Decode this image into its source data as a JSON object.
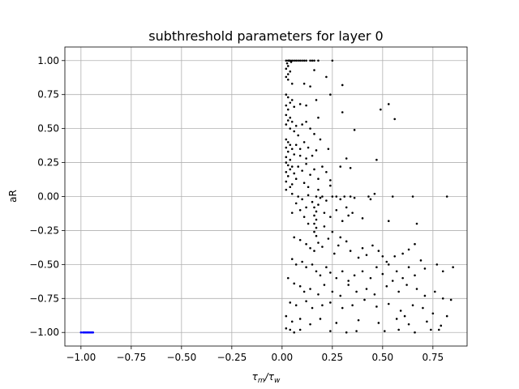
{
  "chart_data": {
    "type": "scatter",
    "title": "subthreshold parameters for layer 0",
    "xlabel_main": "τ",
    "xlabel_sub1": "m",
    "xlabel_sep": "/τ",
    "xlabel_sub2": "w",
    "ylabel": "aR",
    "xlim": [
      -1.08,
      0.92
    ],
    "ylim": [
      -1.1,
      1.1
    ],
    "grid": true,
    "x_ticks": [
      {
        "value": -1.0,
        "label": "−1.00"
      },
      {
        "value": -0.75,
        "label": "−0.75"
      },
      {
        "value": -0.5,
        "label": "−0.50"
      },
      {
        "value": -0.25,
        "label": "−0.25"
      },
      {
        "value": 0.0,
        "label": "0.00"
      },
      {
        "value": 0.25,
        "label": "0.25"
      },
      {
        "value": 0.5,
        "label": "0.50"
      },
      {
        "value": 0.75,
        "label": "0.75"
      }
    ],
    "y_ticks": [
      {
        "value": -1.0,
        "label": "−1.00"
      },
      {
        "value": -0.75,
        "label": "−0.75"
      },
      {
        "value": -0.5,
        "label": "−0.50"
      },
      {
        "value": -0.25,
        "label": "−0.25"
      },
      {
        "value": 0.0,
        "label": "0.00"
      },
      {
        "value": 0.25,
        "label": "0.25"
      },
      {
        "value": 0.5,
        "label": "0.50"
      },
      {
        "value": 0.75,
        "label": "0.75"
      },
      {
        "value": 1.0,
        "label": "1.00"
      }
    ],
    "series": [
      {
        "color": "#0000ff",
        "points": [
          [
            -1.0,
            -1.0
          ],
          [
            -0.99,
            -1.0
          ],
          [
            -0.985,
            -1.0
          ],
          [
            -0.98,
            -1.0
          ],
          [
            -0.975,
            -1.0
          ],
          [
            -0.97,
            -1.0
          ],
          [
            -0.965,
            -1.0
          ],
          [
            -0.96,
            -1.0
          ],
          [
            -0.955,
            -1.0
          ],
          [
            -0.95,
            -1.0
          ],
          [
            -0.945,
            -1.0
          ],
          [
            -0.94,
            -1.0
          ]
        ]
      },
      {
        "color": "#000000",
        "points": [
          [
            0.02,
            1.0
          ],
          [
            0.03,
            1.0
          ],
          [
            0.04,
            1.0
          ],
          [
            0.05,
            1.0
          ],
          [
            0.06,
            1.0
          ],
          [
            0.07,
            1.0
          ],
          [
            0.08,
            1.0
          ],
          [
            0.09,
            1.0
          ],
          [
            0.1,
            1.0
          ],
          [
            0.11,
            1.0
          ],
          [
            0.12,
            1.0
          ],
          [
            0.14,
            1.0
          ],
          [
            0.16,
            1.0
          ],
          [
            0.18,
            1.0
          ],
          [
            0.25,
            1.0
          ],
          [
            0.15,
            1.0
          ],
          [
            0.035,
            1.0
          ],
          [
            0.045,
            0.99
          ],
          [
            0.025,
            0.98
          ],
          [
            0.03,
            0.96
          ],
          [
            0.02,
            0.94
          ],
          [
            0.04,
            0.92
          ],
          [
            0.03,
            0.9
          ],
          [
            0.02,
            0.88
          ],
          [
            0.03,
            0.86
          ],
          [
            0.16,
            0.93
          ],
          [
            0.22,
            0.88
          ],
          [
            0.3,
            0.82
          ],
          [
            0.05,
            0.83
          ],
          [
            0.11,
            0.83
          ],
          [
            0.14,
            0.81
          ],
          [
            0.02,
            0.75
          ],
          [
            0.03,
            0.73
          ],
          [
            0.05,
            0.71
          ],
          [
            0.04,
            0.69
          ],
          [
            0.02,
            0.67
          ],
          [
            0.06,
            0.66
          ],
          [
            0.03,
            0.64
          ],
          [
            0.09,
            0.68
          ],
          [
            0.12,
            0.67
          ],
          [
            0.17,
            0.71
          ],
          [
            0.24,
            0.75
          ],
          [
            0.18,
            0.58
          ],
          [
            0.3,
            0.62
          ],
          [
            0.49,
            0.64
          ],
          [
            0.53,
            0.68
          ],
          [
            0.56,
            0.57
          ],
          [
            0.02,
            0.6
          ],
          [
            0.04,
            0.58
          ],
          [
            0.03,
            0.56
          ],
          [
            0.05,
            0.55
          ],
          [
            0.07,
            0.52
          ],
          [
            0.02,
            0.53
          ],
          [
            0.04,
            0.5
          ],
          [
            0.06,
            0.48
          ],
          [
            0.1,
            0.53
          ],
          [
            0.12,
            0.55
          ],
          [
            0.14,
            0.5
          ],
          [
            0.16,
            0.46
          ],
          [
            0.08,
            0.45
          ],
          [
            0.19,
            0.42
          ],
          [
            0.36,
            0.49
          ],
          [
            0.02,
            0.42
          ],
          [
            0.03,
            0.4
          ],
          [
            0.04,
            0.38
          ],
          [
            0.02,
            0.36
          ],
          [
            0.05,
            0.35
          ],
          [
            0.03,
            0.33
          ],
          [
            0.06,
            0.31
          ],
          [
            0.02,
            0.29
          ],
          [
            0.04,
            0.27
          ],
          [
            0.07,
            0.38
          ],
          [
            0.09,
            0.35
          ],
          [
            0.11,
            0.4
          ],
          [
            0.13,
            0.36
          ],
          [
            0.15,
            0.3
          ],
          [
            0.17,
            0.34
          ],
          [
            0.23,
            0.35
          ],
          [
            0.09,
            0.3
          ],
          [
            0.12,
            0.28
          ],
          [
            0.02,
            0.25
          ],
          [
            0.03,
            0.23
          ],
          [
            0.05,
            0.22
          ],
          [
            0.04,
            0.2
          ],
          [
            0.02,
            0.18
          ],
          [
            0.06,
            0.17
          ],
          [
            0.03,
            0.15
          ],
          [
            0.07,
            0.13
          ],
          [
            0.02,
            0.11
          ],
          [
            0.05,
            0.09
          ],
          [
            0.04,
            0.07
          ],
          [
            0.02,
            0.05
          ],
          [
            0.08,
            0.22
          ],
          [
            0.1,
            0.19
          ],
          [
            0.12,
            0.24
          ],
          [
            0.14,
            0.16
          ],
          [
            0.16,
            0.2
          ],
          [
            0.18,
            0.13
          ],
          [
            0.2,
            0.22
          ],
          [
            0.22,
            0.18
          ],
          [
            0.24,
            0.12
          ],
          [
            0.32,
            0.28
          ],
          [
            0.34,
            0.21
          ],
          [
            0.29,
            0.22
          ],
          [
            0.47,
            0.27
          ],
          [
            0.11,
            0.1
          ],
          [
            0.13,
            0.07
          ],
          [
            0.18,
            0.05
          ],
          [
            0.24,
            0.08
          ],
          [
            0.05,
            0.02
          ],
          [
            0.08,
            0.0
          ],
          [
            0.1,
            -0.02
          ],
          [
            0.13,
            0.01
          ],
          [
            0.15,
            -0.04
          ],
          [
            0.17,
            0.0
          ],
          [
            0.19,
            -0.01
          ],
          [
            0.2,
            0.0
          ],
          [
            0.22,
            -0.03
          ],
          [
            0.25,
            0.0
          ],
          [
            0.27,
            0.0
          ],
          [
            0.29,
            -0.02
          ],
          [
            0.31,
            0.0
          ],
          [
            0.34,
            0.0
          ],
          [
            0.36,
            -0.01
          ],
          [
            0.18,
            -0.06
          ],
          [
            0.12,
            -0.08
          ],
          [
            0.07,
            -0.05
          ],
          [
            0.43,
            0.0
          ],
          [
            0.46,
            0.02
          ],
          [
            0.44,
            -0.02
          ],
          [
            0.55,
            0.0
          ],
          [
            0.65,
            0.0
          ],
          [
            0.82,
            0.0
          ],
          [
            0.32,
            -0.08
          ],
          [
            0.16,
            -0.08
          ],
          [
            0.17,
            -0.11
          ],
          [
            0.16,
            -0.14
          ],
          [
            0.17,
            -0.17
          ],
          [
            0.16,
            -0.2
          ],
          [
            0.17,
            -0.23
          ],
          [
            0.16,
            -0.26
          ],
          [
            0.17,
            -0.29
          ],
          [
            0.05,
            -0.12
          ],
          [
            0.09,
            -0.1
          ],
          [
            0.11,
            -0.15
          ],
          [
            0.13,
            -0.2
          ],
          [
            0.21,
            -0.12
          ],
          [
            0.24,
            -0.15
          ],
          [
            0.27,
            -0.1
          ],
          [
            0.3,
            -0.18
          ],
          [
            0.33,
            -0.14
          ],
          [
            0.21,
            -0.22
          ],
          [
            0.25,
            -0.26
          ],
          [
            0.29,
            -0.3
          ],
          [
            0.35,
            -0.12
          ],
          [
            0.4,
            -0.16
          ],
          [
            0.53,
            -0.18
          ],
          [
            0.67,
            -0.2
          ],
          [
            0.06,
            -0.3
          ],
          [
            0.09,
            -0.32
          ],
          [
            0.12,
            -0.35
          ],
          [
            0.14,
            -0.38
          ],
          [
            0.16,
            -0.4
          ],
          [
            0.18,
            -0.34
          ],
          [
            0.2,
            -0.37
          ],
          [
            0.23,
            -0.31
          ],
          [
            0.26,
            -0.42
          ],
          [
            0.28,
            -0.36
          ],
          [
            0.32,
            -0.33
          ],
          [
            0.34,
            -0.4
          ],
          [
            0.38,
            -0.45
          ],
          [
            0.4,
            -0.38
          ],
          [
            0.42,
            -0.43
          ],
          [
            0.45,
            -0.36
          ],
          [
            0.48,
            -0.4
          ],
          [
            0.5,
            -0.44
          ],
          [
            0.52,
            -0.48
          ],
          [
            0.56,
            -0.44
          ],
          [
            0.6,
            -0.42
          ],
          [
            0.63,
            -0.39
          ],
          [
            0.66,
            -0.35
          ],
          [
            0.69,
            -0.47
          ],
          [
            0.05,
            -0.46
          ],
          [
            0.07,
            -0.5
          ],
          [
            0.1,
            -0.48
          ],
          [
            0.12,
            -0.52
          ],
          [
            0.15,
            -0.5
          ],
          [
            0.17,
            -0.55
          ],
          [
            0.19,
            -0.58
          ],
          [
            0.22,
            -0.52
          ],
          [
            0.24,
            -0.56
          ],
          [
            0.27,
            -0.6
          ],
          [
            0.3,
            -0.55
          ],
          [
            0.33,
            -0.62
          ],
          [
            0.36,
            -0.58
          ],
          [
            0.4,
            -0.55
          ],
          [
            0.44,
            -0.6
          ],
          [
            0.47,
            -0.52
          ],
          [
            0.5,
            -0.57
          ],
          [
            0.53,
            -0.5
          ],
          [
            0.57,
            -0.55
          ],
          [
            0.6,
            -0.6
          ],
          [
            0.63,
            -0.52
          ],
          [
            0.66,
            -0.58
          ],
          [
            0.71,
            -0.53
          ],
          [
            0.77,
            -0.5
          ],
          [
            0.8,
            -0.55
          ],
          [
            0.85,
            -0.52
          ],
          [
            0.03,
            -0.6
          ],
          [
            0.06,
            -0.64
          ],
          [
            0.09,
            -0.66
          ],
          [
            0.11,
            -0.7
          ],
          [
            0.14,
            -0.68
          ],
          [
            0.18,
            -0.72
          ],
          [
            0.21,
            -0.65
          ],
          [
            0.25,
            -0.7
          ],
          [
            0.29,
            -0.73
          ],
          [
            0.33,
            -0.65
          ],
          [
            0.37,
            -0.7
          ],
          [
            0.42,
            -0.68
          ],
          [
            0.46,
            -0.72
          ],
          [
            0.52,
            -0.66
          ],
          [
            0.58,
            -0.7
          ],
          [
            0.62,
            -0.65
          ],
          [
            0.67,
            -0.68
          ],
          [
            0.71,
            -0.73
          ],
          [
            0.76,
            -0.7
          ],
          [
            0.8,
            -0.75
          ],
          [
            0.84,
            -0.76
          ],
          [
            0.55,
            -0.62
          ],
          [
            0.04,
            -0.78
          ],
          [
            0.07,
            -0.8
          ],
          [
            0.12,
            -0.77
          ],
          [
            0.15,
            -0.82
          ],
          [
            0.2,
            -0.8
          ],
          [
            0.24,
            -0.78
          ],
          [
            0.3,
            -0.82
          ],
          [
            0.35,
            -0.8
          ],
          [
            0.41,
            -0.76
          ],
          [
            0.47,
            -0.81
          ],
          [
            0.53,
            -0.79
          ],
          [
            0.59,
            -0.84
          ],
          [
            0.65,
            -0.8
          ],
          [
            0.7,
            -0.82
          ],
          [
            0.75,
            -0.86
          ],
          [
            0.82,
            -0.88
          ],
          [
            0.61,
            -0.88
          ],
          [
            0.02,
            -0.88
          ],
          [
            0.05,
            -0.92
          ],
          [
            0.09,
            -0.9
          ],
          [
            0.14,
            -0.94
          ],
          [
            0.19,
            -0.9
          ],
          [
            0.27,
            -0.93
          ],
          [
            0.38,
            -0.91
          ],
          [
            0.48,
            -0.93
          ],
          [
            0.57,
            -0.9
          ],
          [
            0.63,
            -0.94
          ],
          [
            0.72,
            -0.92
          ],
          [
            0.79,
            -0.95
          ],
          [
            0.02,
            -0.97
          ],
          [
            0.04,
            -0.98
          ],
          [
            0.06,
            -1.0
          ],
          [
            0.09,
            -0.98
          ],
          [
            0.24,
            -0.99
          ],
          [
            0.32,
            -1.0
          ],
          [
            0.37,
            -0.99
          ],
          [
            0.51,
            -0.99
          ],
          [
            0.58,
            -0.98
          ],
          [
            0.66,
            -1.0
          ],
          [
            0.74,
            -0.98
          ],
          [
            0.78,
            -0.98
          ]
        ]
      }
    ]
  }
}
